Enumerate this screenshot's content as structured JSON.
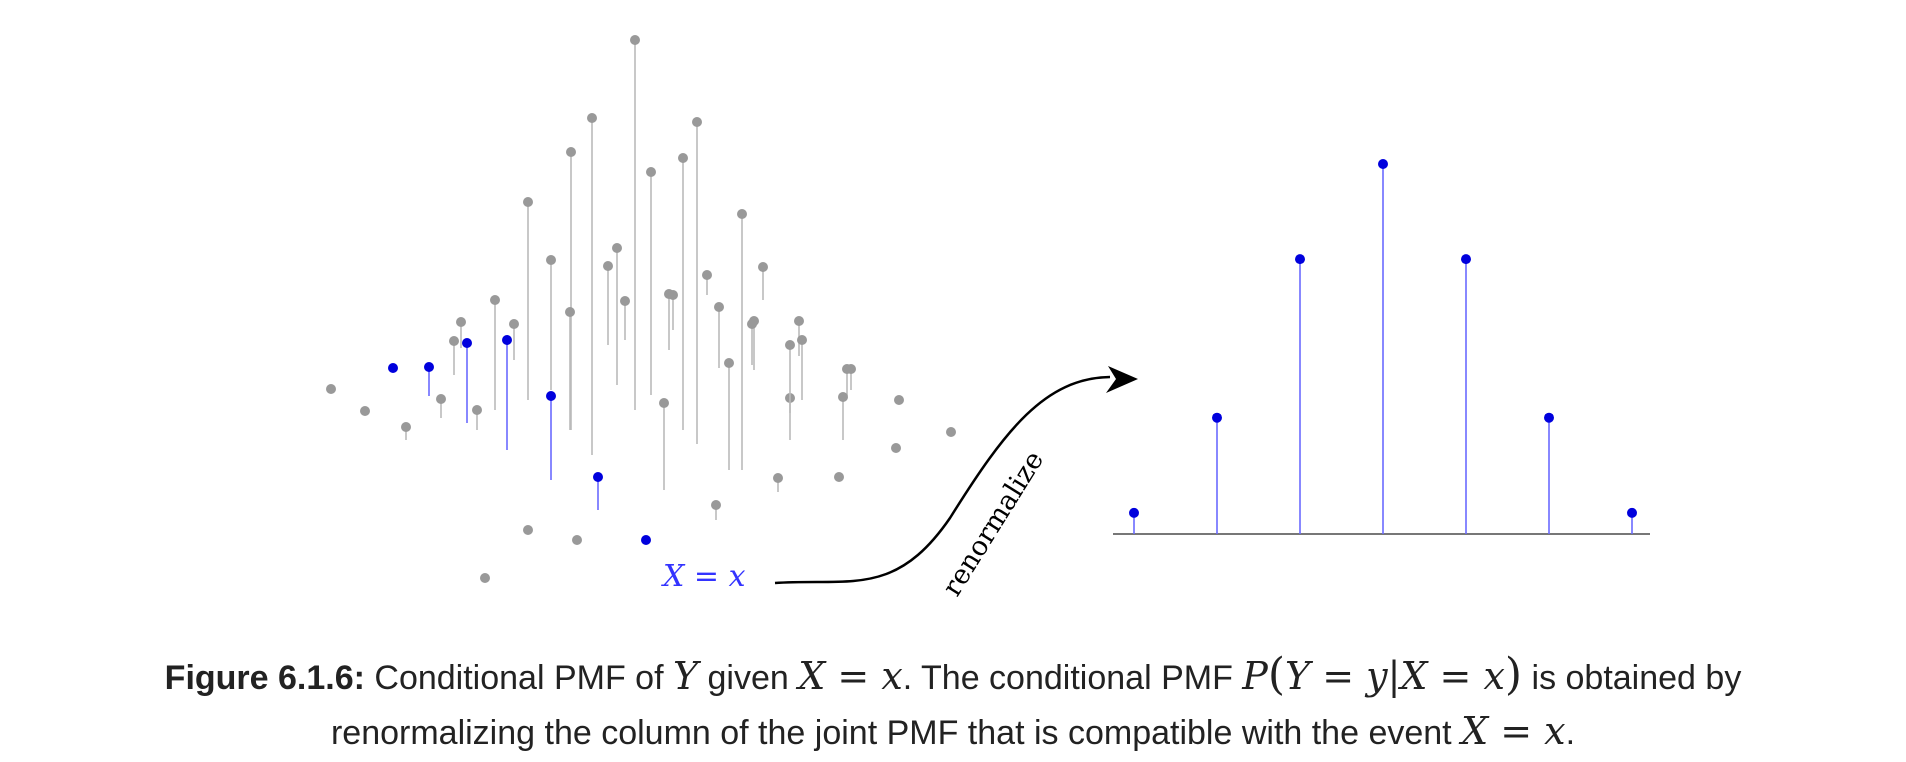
{
  "figure": {
    "event_label": "X = x",
    "arrow_label": "renormalize"
  },
  "conditional_pmf": {
    "values": [
      0.02,
      0.11,
      0.26,
      0.35,
      0.26,
      0.11,
      0.02
    ]
  },
  "caption": {
    "label": "Figure 6.1.6:",
    "text_1": " Conditional PMF of ",
    "math_Y": "Y",
    "text_2": " given ",
    "math_X_eq_x_1": "X = x",
    "text_3": ". The conditional PMF ",
    "math_P": "P",
    "math_open": "(",
    "math_cond": "Y = y|X = x",
    "math_close": ")",
    "text_4": " is obtained by",
    "text_5": "renormalizing the column of the joint PMF that is compatible with the event ",
    "math_X_eq_x_2": "X = x",
    "text_6": "."
  },
  "colors": {
    "joint_pmf": "#999999",
    "joint_pmf_line": "#bbbbbb",
    "highlight": "#0000dd",
    "highlight_line": "#6b6bff",
    "label_blue": "#3333ff",
    "axis": "#777777",
    "arrow": "#000000"
  }
}
